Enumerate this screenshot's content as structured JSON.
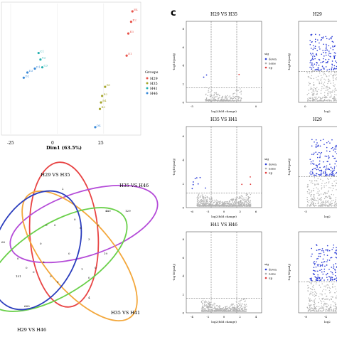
{
  "figure": {
    "panel_c_letter": "c"
  },
  "pca": {
    "xlabel": "Dim1 (63.5%)",
    "x_ticks": [
      "-25",
      "0",
      "25"
    ],
    "legend_title": "Groups",
    "groups": [
      {
        "name": "H29",
        "color": "#e8534a"
      },
      {
        "name": "H35",
        "color": "#a5a52a"
      },
      {
        "name": "H41",
        "color": "#24b0b0"
      },
      {
        "name": "H46",
        "color": "#3b8ad8"
      }
    ],
    "points": [
      {
        "group": "H29",
        "label": "E4",
        "x": 40.5,
        "y": 94
      },
      {
        "group": "H29",
        "label": "E2",
        "x": 39.8,
        "y": 86
      },
      {
        "group": "H29",
        "label": "E3",
        "x": 38.3,
        "y": 77
      },
      {
        "group": "H29",
        "label": "E1",
        "x": 37.4,
        "y": 60
      },
      {
        "group": "H35",
        "label": "B1",
        "x": 25.8,
        "y": 36
      },
      {
        "group": "H35",
        "label": "B2",
        "x": 24.2,
        "y": 29
      },
      {
        "group": "H35",
        "label": "B4",
        "x": 23.6,
        "y": 24
      },
      {
        "group": "H35",
        "label": "B3",
        "x": 23.0,
        "y": 19
      },
      {
        "group": "H41",
        "label": "C1",
        "x": -10,
        "y": 62
      },
      {
        "group": "H41",
        "label": "C2",
        "x": -9,
        "y": 57
      },
      {
        "group": "H41",
        "label": "C3",
        "x": -8,
        "y": 51
      },
      {
        "group": "H46",
        "label": "D1",
        "x": -12,
        "y": 50
      },
      {
        "group": "H46",
        "label": "D2",
        "x": -18,
        "y": 43
      },
      {
        "group": "H46",
        "label": "D3",
        "x": -16,
        "y": 47
      },
      {
        "group": "H46",
        "label": "D4",
        "x": 20.5,
        "y": 5
      }
    ]
  },
  "venn": {
    "set_labels": [
      "H29 VS H35",
      "H35 VS H46",
      "H35 VS H41",
      "H29 VS H46"
    ],
    "counts": [
      "2",
      "440",
      "129",
      "0",
      "0",
      "0",
      "8",
      "0",
      "3",
      "19",
      "0",
      "0",
      "0",
      "0",
      "1",
      "0",
      "0",
      "0",
      "151",
      "0",
      "0",
      "4",
      "660",
      "0",
      "60"
    ]
  },
  "volcano": {
    "xlabel": "log2(fold change)",
    "ylabel": "-log10(padj)",
    "legend_title": "sig",
    "legend_items": [
      {
        "name": "down",
        "color": "#2a3bd6"
      },
      {
        "name": "none",
        "color": "#aaaaaa"
      },
      {
        "name": "up",
        "color": "#e03a3a"
      }
    ],
    "panels": [
      {
        "title": "H29 VS H35",
        "x_ticks": [
          "-5",
          "0"
        ],
        "y_ticks": [
          "0",
          "2",
          "4",
          "6",
          "8"
        ],
        "down_count": 2,
        "up_count": 1,
        "density": 1
      },
      {
        "title": "H35 VS H41",
        "x_ticks": [
          "-6",
          "-3",
          "0",
          "3",
          "6"
        ],
        "y_ticks": [
          "0",
          "2",
          "4",
          "6"
        ],
        "down_count": 8,
        "up_count": 3,
        "density": 3
      },
      {
        "title": "H41 VS H46",
        "x_ticks": [
          "-4",
          "-2",
          "0",
          "2",
          "4"
        ],
        "y_ticks": [
          "0",
          "2",
          "4",
          "6",
          "8"
        ],
        "down_count": 0,
        "up_count": 0,
        "density": 2
      }
    ],
    "right_partial": [
      {
        "title": "H29",
        "xlabel": "log2",
        "x_ticks": [
          "0"
        ]
      },
      {
        "title": "H29",
        "xlabel": "log2",
        "x_ticks": [
          "-5"
        ]
      },
      {
        "title": "",
        "xlabel": "log2",
        "x_ticks": [
          "-8",
          "-4"
        ]
      }
    ]
  }
}
